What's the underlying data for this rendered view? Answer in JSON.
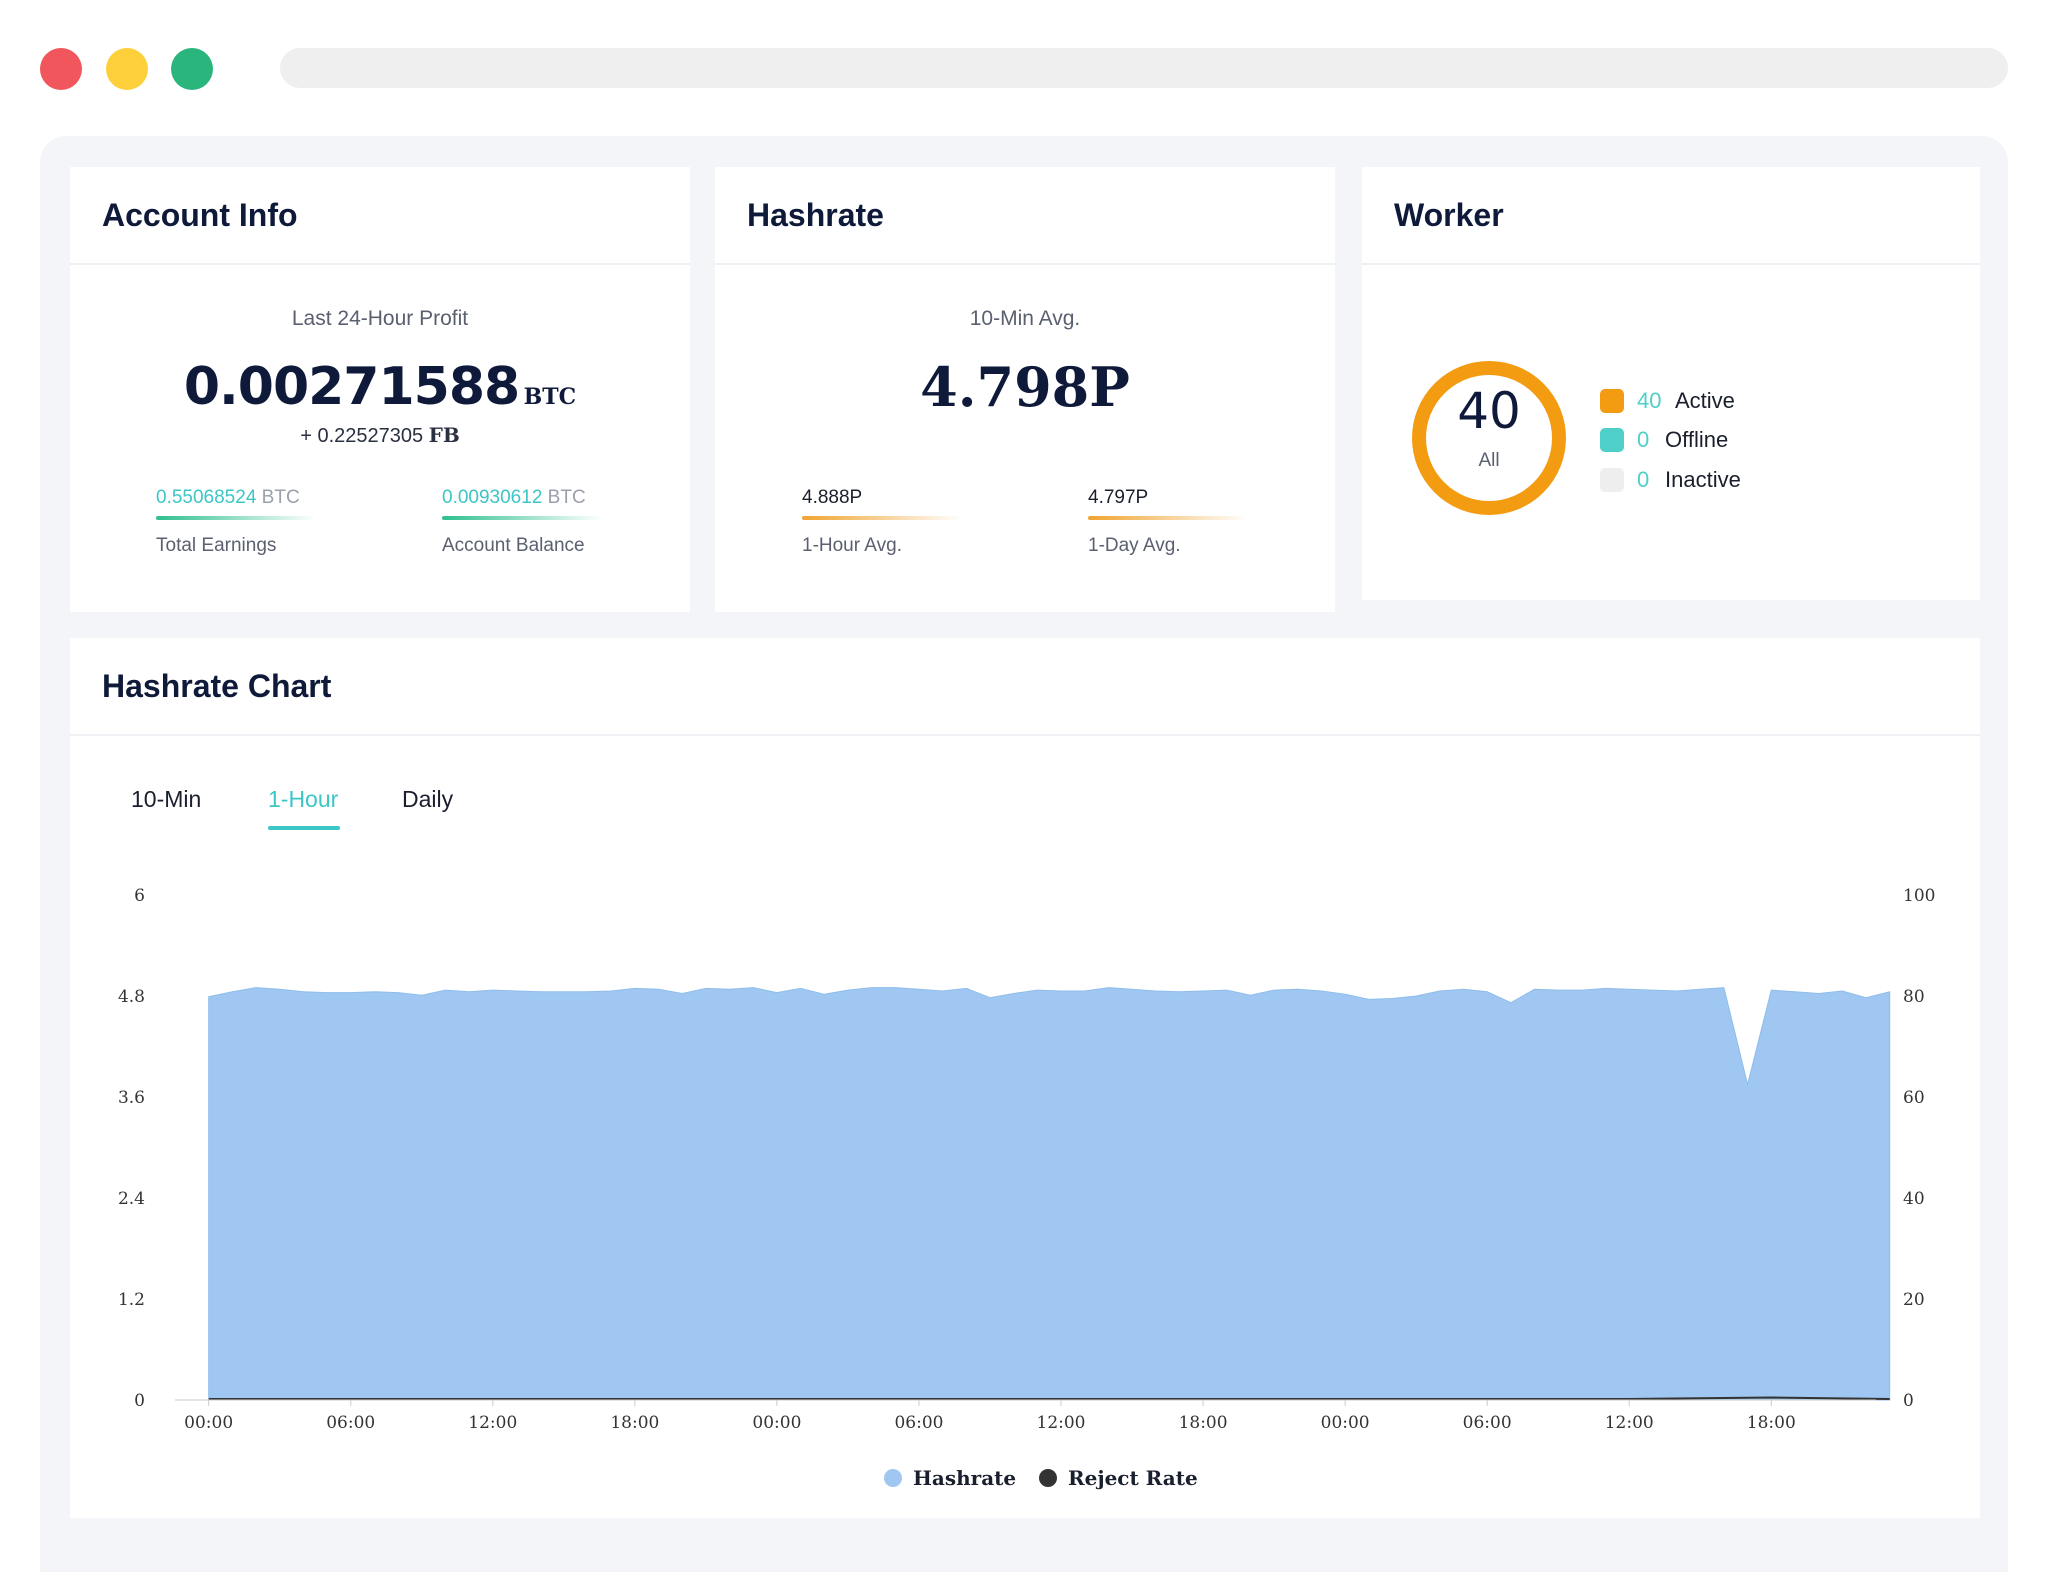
{
  "window": {
    "controls": [
      "close",
      "minimize",
      "maximize"
    ],
    "colors": {
      "close": "#f0565b",
      "minimize": "#fdd03b",
      "maximize": "#2ab57d"
    }
  },
  "account": {
    "title": "Account Info",
    "profit_label": "Last 24-Hour Profit",
    "profit_value": "0.00271588",
    "profit_unit": "BTC",
    "fb_value": "+ 0.22527305",
    "fb_unit": "FB",
    "total_value": "0.55068524",
    "total_unit": "BTC",
    "total_label": "Total Earnings",
    "balance_value": "0.00930612",
    "balance_unit": "BTC",
    "balance_label": "Account Balance"
  },
  "hashrate": {
    "title": "Hashrate",
    "avg_label": "10-Min Avg.",
    "avg_value": "4.798P",
    "hour_value": "4.888P",
    "hour_label": "1-Hour Avg.",
    "day_value": "4.797P",
    "day_label": "1-Day Avg."
  },
  "worker": {
    "title": "Worker",
    "total": "40",
    "total_label": "All",
    "legend": [
      {
        "count": "40",
        "label": "Active",
        "color": "#f39c12"
      },
      {
        "count": "0",
        "label": "Offline",
        "color": "#4fcfc9"
      },
      {
        "count": "0",
        "label": "Inactive",
        "color": "#eeeeee"
      }
    ]
  },
  "chart_section": {
    "title": "Hashrate Chart",
    "tabs": [
      {
        "label": "10-Min",
        "active": false
      },
      {
        "label": "1-Hour",
        "active": true
      },
      {
        "label": "Daily",
        "active": false
      }
    ],
    "accent": "#3cc6c6"
  },
  "chart_data": {
    "type": "area",
    "title": "Hashrate Chart",
    "x_tick_labels": [
      "00:00",
      "06:00",
      "12:00",
      "18:00",
      "00:00",
      "06:00",
      "12:00",
      "18:00",
      "00:00",
      "06:00",
      "12:00",
      "18:00"
    ],
    "y_left_ticks": [
      "0",
      "1.2",
      "2.4",
      "3.6",
      "4.8",
      "6"
    ],
    "y_right_ticks": [
      "0",
      "20",
      "40",
      "60",
      "80",
      "100"
    ],
    "ylim_left": [
      0,
      6
    ],
    "ylim_right": [
      0,
      100
    ],
    "xlim_hours": [
      -1,
      70
    ],
    "series": [
      {
        "name": "Hashrate",
        "axis": "left",
        "color": "#9fc7f1",
        "x": [
          0,
          1,
          2,
          3,
          4,
          5,
          6,
          7,
          8,
          9,
          10,
          11,
          12,
          13,
          14,
          15,
          16,
          17,
          18,
          19,
          20,
          21,
          22,
          23,
          24,
          25,
          26,
          27,
          28,
          29,
          30,
          31,
          32,
          33,
          34,
          35,
          36,
          37,
          38,
          39,
          40,
          41,
          42,
          43,
          44,
          45,
          46,
          47,
          48,
          49,
          50,
          51,
          52,
          53,
          54,
          55,
          56,
          57,
          58,
          59,
          60,
          61,
          62,
          63,
          64,
          65,
          66,
          67,
          68,
          69,
          70,
          71
        ],
        "values": [
          4.79,
          4.85,
          4.9,
          4.88,
          4.85,
          4.84,
          4.84,
          4.85,
          4.84,
          4.81,
          4.87,
          4.85,
          4.87,
          4.86,
          4.85,
          4.85,
          4.85,
          4.86,
          4.89,
          4.88,
          4.83,
          4.89,
          4.88,
          4.9,
          4.84,
          4.89,
          4.82,
          4.87,
          4.9,
          4.9,
          4.88,
          4.86,
          4.89,
          4.78,
          4.83,
          4.87,
          4.86,
          4.86,
          4.9,
          4.88,
          4.86,
          4.85,
          4.86,
          4.87,
          4.81,
          4.87,
          4.88,
          4.86,
          4.82,
          4.76,
          4.77,
          4.8,
          4.86,
          4.88,
          4.85,
          4.72,
          4.88,
          4.87,
          4.87,
          4.89,
          4.88,
          4.87,
          4.86,
          4.88,
          4.9,
          3.75,
          4.87,
          4.85,
          4.83,
          4.86,
          4.78,
          4.85
        ]
      },
      {
        "name": "Reject Rate",
        "axis": "right",
        "color": "#333333",
        "x": [
          0,
          6,
          12,
          18,
          24,
          30,
          36,
          42,
          48,
          54,
          60,
          66,
          71
        ],
        "values": [
          0,
          0,
          0,
          0,
          0,
          0,
          0,
          0,
          0,
          0,
          0,
          0.3,
          0
        ]
      }
    ],
    "legend": [
      {
        "label": "Hashrate",
        "color": "#9fc7f1"
      },
      {
        "label": "Reject Rate",
        "color": "#333333"
      }
    ]
  }
}
